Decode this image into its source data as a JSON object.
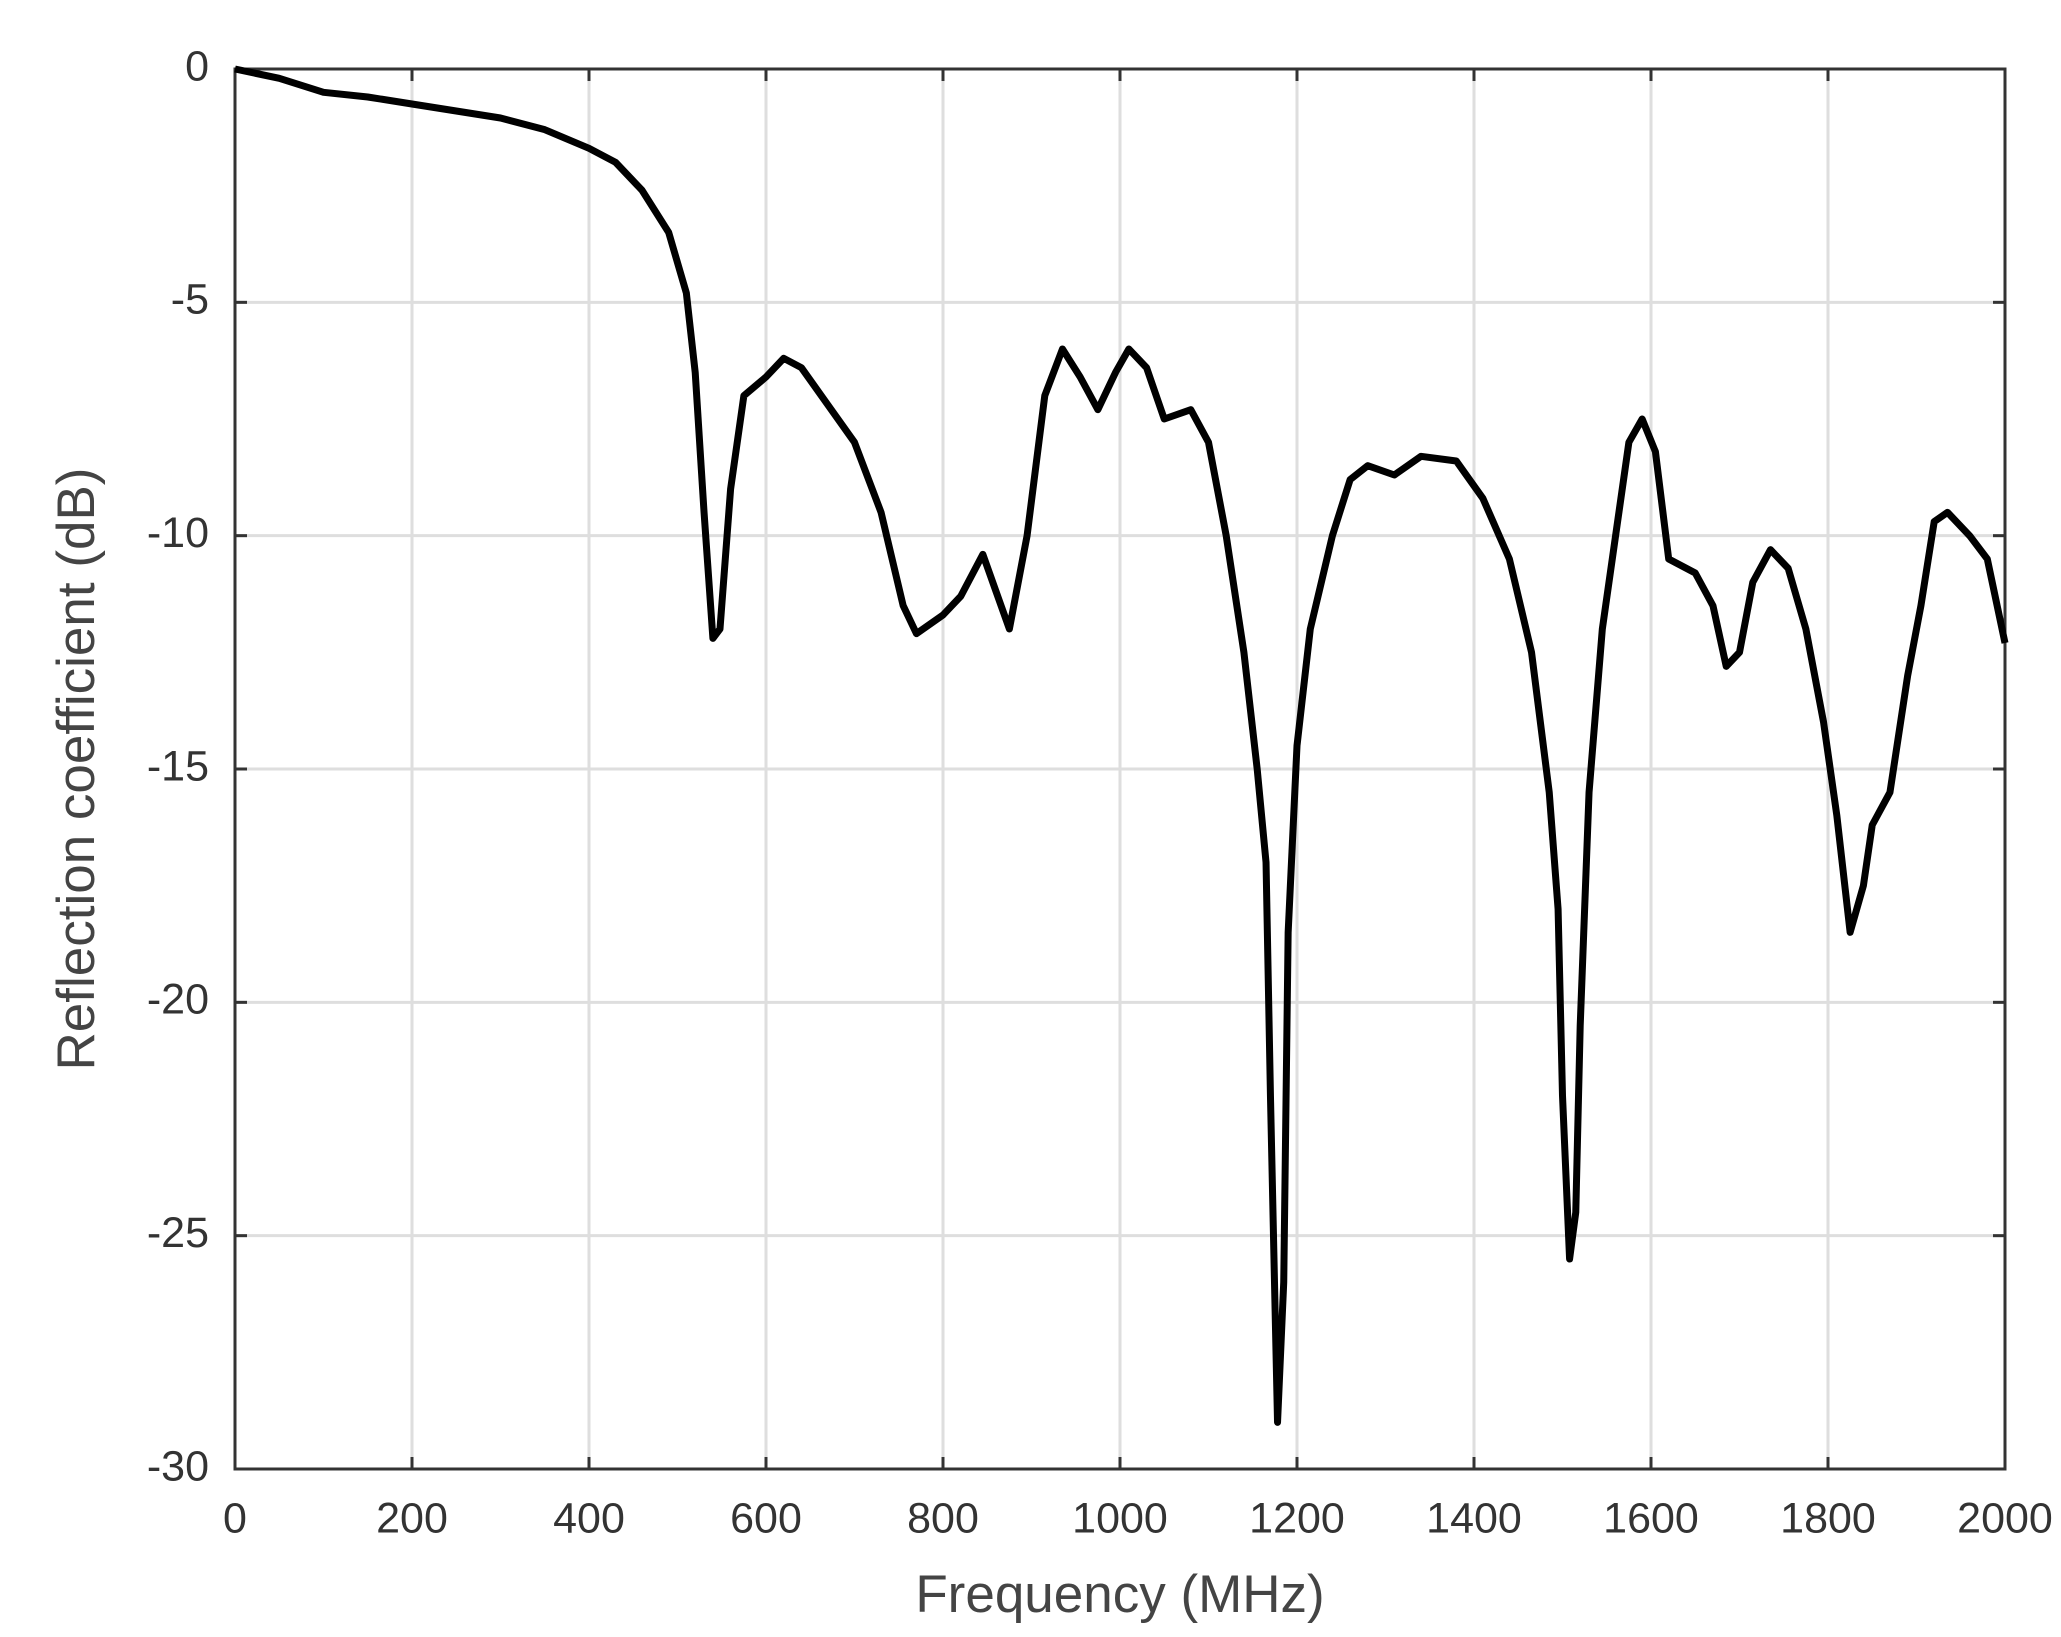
{
  "chart_data": {
    "type": "line",
    "xlabel": "Frequency (MHz)",
    "ylabel": "Reflection coefficient (dB)",
    "x": [
      0,
      50,
      100,
      150,
      200,
      250,
      300,
      350,
      400,
      430,
      460,
      490,
      510,
      520,
      530,
      540,
      548,
      560,
      575,
      600,
      620,
      640,
      670,
      700,
      730,
      755,
      770,
      800,
      820,
      845,
      860,
      875,
      895,
      915,
      935,
      955,
      975,
      995,
      1010,
      1030,
      1050,
      1080,
      1100,
      1120,
      1140,
      1155,
      1165,
      1170,
      1178,
      1185,
      1190,
      1200,
      1215,
      1240,
      1260,
      1280,
      1310,
      1340,
      1380,
      1410,
      1440,
      1465,
      1485,
      1495,
      1500,
      1508,
      1515,
      1520,
      1530,
      1545,
      1560,
      1575,
      1590,
      1605,
      1620,
      1650,
      1670,
      1685,
      1700,
      1715,
      1735,
      1755,
      1775,
      1795,
      1810,
      1825,
      1840,
      1850,
      1870,
      1890,
      1905,
      1920,
      1935,
      1960,
      1980,
      2000
    ],
    "values": [
      0,
      -0.2,
      -0.5,
      -0.6,
      -0.75,
      -0.9,
      -1.05,
      -1.3,
      -1.7,
      -2.0,
      -2.6,
      -3.5,
      -4.8,
      -6.5,
      -9.5,
      -12.2,
      -12.0,
      -9.0,
      -7.0,
      -6.6,
      -6.2,
      -6.4,
      -7.2,
      -8.0,
      -9.5,
      -11.5,
      -12.1,
      -11.7,
      -11.3,
      -10.4,
      -11.2,
      -12.0,
      -10.0,
      -7.0,
      -6.0,
      -6.6,
      -7.3,
      -6.5,
      -6.0,
      -6.4,
      -7.5,
      -7.3,
      -8.0,
      -10.0,
      -12.5,
      -15.0,
      -17.0,
      -22.0,
      -29.0,
      -26.0,
      -18.5,
      -14.5,
      -12.0,
      -10.0,
      -8.8,
      -8.5,
      -8.7,
      -8.3,
      -8.4,
      -9.2,
      -10.5,
      -12.5,
      -15.5,
      -18.0,
      -22.0,
      -25.5,
      -24.5,
      -20.5,
      -15.5,
      -12.0,
      -10.0,
      -8.0,
      -7.5,
      -8.2,
      -10.5,
      -10.8,
      -11.5,
      -12.8,
      -12.5,
      -11.0,
      -10.3,
      -10.7,
      -12.0,
      -14.0,
      -16.0,
      -18.5,
      -17.5,
      -16.2,
      -15.5,
      -13.0,
      -11.5,
      -9.7,
      -9.5,
      -10.0,
      -10.5,
      -12.3
    ],
    "color": "#000000",
    "xlim": [
      0,
      2000
    ],
    "xticks": [
      0,
      200,
      400,
      600,
      800,
      1000,
      1200,
      1400,
      1600,
      1800,
      2000
    ],
    "ylim": [
      -30,
      0
    ],
    "yticks": [
      -30,
      -25,
      -20,
      -15,
      -10,
      -5,
      0
    ],
    "grid": true
  }
}
